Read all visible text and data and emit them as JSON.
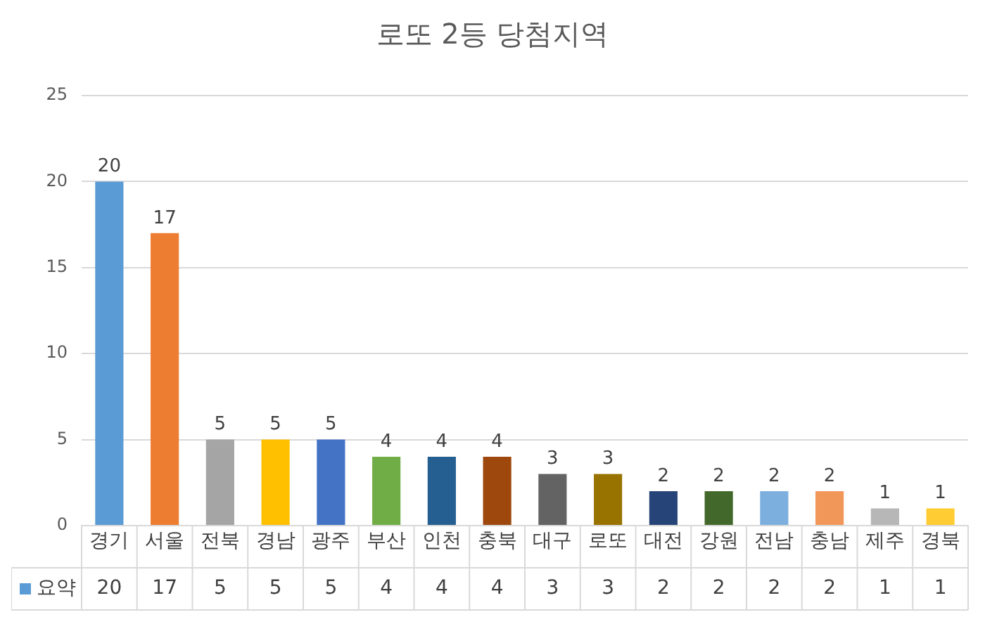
{
  "chart_data": {
    "type": "bar",
    "title": "로또 2등 당첨지역",
    "categories": [
      "경기",
      "서울",
      "전북",
      "경남",
      "광주",
      "부산",
      "인천",
      "충북",
      "대구",
      "로또",
      "대전",
      "강원",
      "전남",
      "충남",
      "제주",
      "경북"
    ],
    "series": [
      {
        "name": "요약",
        "color": "#5b9bd5",
        "colors": [
          "#5b9bd5",
          "#ed7d31",
          "#a5a5a5",
          "#ffc000",
          "#4472c4",
          "#70ad47",
          "#255e91",
          "#9e480e",
          "#636363",
          "#997300",
          "#264478",
          "#43682b",
          "#7cafdd",
          "#f1975a",
          "#b7b7b7",
          "#ffcd33"
        ],
        "values": [
          20,
          17,
          5,
          5,
          5,
          4,
          4,
          4,
          3,
          3,
          2,
          2,
          2,
          2,
          1,
          1
        ]
      }
    ],
    "annotations": [
      "20",
      "17",
      "5",
      "5",
      "5",
      "4",
      "4",
      "4",
      "3",
      "3",
      "2",
      "2",
      "2",
      "2",
      "1",
      "1"
    ],
    "ylim": [
      0,
      25
    ],
    "yticks": [
      0,
      5,
      10,
      15,
      20,
      25
    ],
    "grid": "y",
    "legend": "bottom",
    "data_labels": true
  }
}
